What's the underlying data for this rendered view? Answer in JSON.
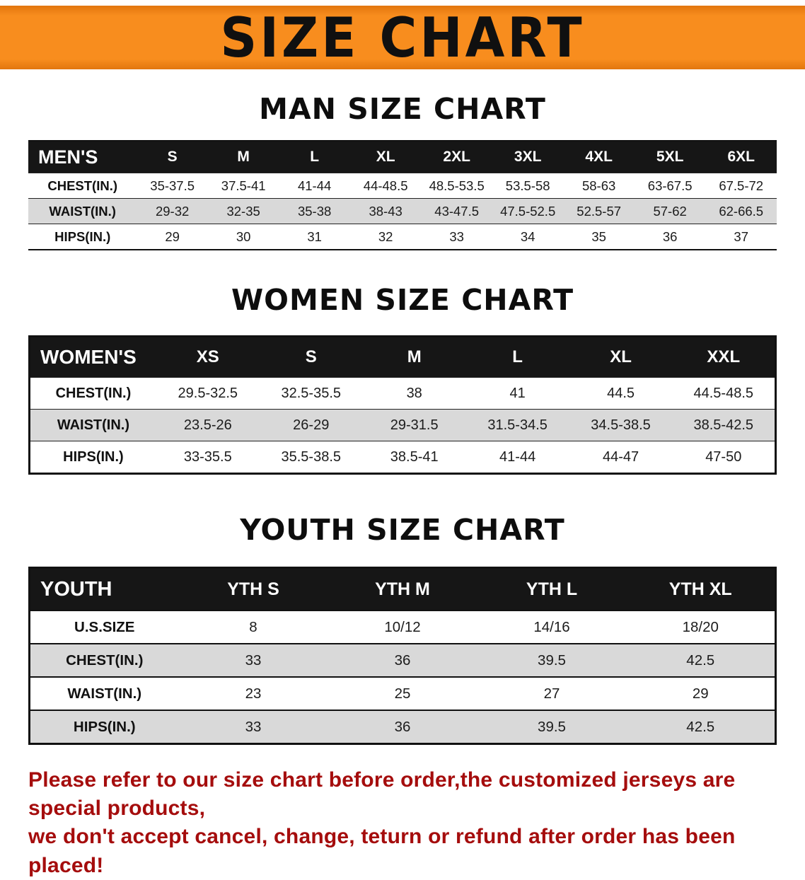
{
  "banner": {
    "title": "SIZE CHART",
    "background_color": "#F68D1E"
  },
  "sections": [
    {
      "heading": "MAN SIZE CHART",
      "table": {
        "header": [
          "MEN'S",
          "S",
          "M",
          "L",
          "XL",
          "2XL",
          "3XL",
          "4XL",
          "5XL",
          "6XL"
        ],
        "rows": [
          {
            "label": "CHEST(IN.)",
            "values": [
              "35-37.5",
              "37.5-41",
              "41-44",
              "44-48.5",
              "48.5-53.5",
              "53.5-58",
              "58-63",
              "63-67.5",
              "67.5-72"
            ]
          },
          {
            "label": "WAIST(IN.)",
            "values": [
              "29-32",
              "32-35",
              "35-38",
              "38-43",
              "43-47.5",
              "47.5-52.5",
              "52.5-57",
              "57-62",
              "62-66.5"
            ]
          },
          {
            "label": "HIPS(IN.)",
            "values": [
              "29",
              "30",
              "31",
              "32",
              "33",
              "34",
              "35",
              "36",
              "37"
            ]
          }
        ]
      }
    },
    {
      "heading": "WOMEN SIZE CHART",
      "table": {
        "header": [
          "WOMEN'S",
          "XS",
          "S",
          "M",
          "L",
          "XL",
          "XXL"
        ],
        "rows": [
          {
            "label": "CHEST(IN.)",
            "values": [
              "29.5-32.5",
              "32.5-35.5",
              "38",
              "41",
              "44.5",
              "44.5-48.5"
            ]
          },
          {
            "label": "WAIST(IN.)",
            "values": [
              "23.5-26",
              "26-29",
              "29-31.5",
              "31.5-34.5",
              "34.5-38.5",
              "38.5-42.5"
            ]
          },
          {
            "label": "HIPS(IN.)",
            "values": [
              "33-35.5",
              "35.5-38.5",
              "38.5-41",
              "41-44",
              "44-47",
              "47-50"
            ]
          }
        ]
      }
    },
    {
      "heading": "YOUTH SIZE CHART",
      "table": {
        "header": [
          "YOUTH",
          "YTH S",
          "YTH M",
          "YTH L",
          "YTH XL"
        ],
        "rows": [
          {
            "label": "U.S.SIZE",
            "values": [
              "8",
              "10/12",
              "14/16",
              "18/20"
            ]
          },
          {
            "label": "CHEST(IN.)",
            "values": [
              "33",
              "36",
              "39.5",
              "42.5"
            ]
          },
          {
            "label": "WAIST(IN.)",
            "values": [
              "23",
              "25",
              "27",
              "29"
            ]
          },
          {
            "label": "HIPS(IN.)",
            "values": [
              "33",
              "36",
              "39.5",
              "42.5"
            ]
          }
        ]
      }
    }
  ],
  "footer": {
    "lines": [
      "Please refer to our size chart before order,the customized jerseys are special products,",
      "we don't accept cancel, change, teturn or refund after order has been placed!"
    ],
    "text_color": "#A50D0D"
  },
  "colors": {
    "header_row_bg": "#161616",
    "shaded_row_bg": "#D9D9D9",
    "banner_orange": "#F68D1E"
  }
}
